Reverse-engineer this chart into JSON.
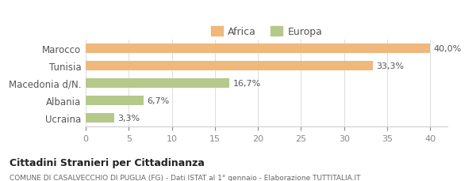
{
  "categories": [
    "Marocco",
    "Tunisia",
    "Macedonia d/N.",
    "Albania",
    "Ucraina"
  ],
  "values": [
    40.0,
    33.3,
    16.7,
    6.7,
    3.3
  ],
  "labels": [
    "40,0%",
    "33,3%",
    "16,7%",
    "6,7%",
    "3,3%"
  ],
  "bar_colors": [
    "#f0b87a",
    "#f0b87a",
    "#b5c98a",
    "#b5c98a",
    "#b5c98a"
  ],
  "legend_labels": [
    "Africa",
    "Europa"
  ],
  "legend_colors": [
    "#f0b87a",
    "#b5c98a"
  ],
  "xlim": [
    0,
    42
  ],
  "xticks": [
    0,
    5,
    10,
    15,
    20,
    25,
    30,
    35,
    40
  ],
  "title_bold": "Cittadini Stranieri per Cittadinanza",
  "subtitle": "COMUNE DI CASALVECCHIO DI PUGLIA (FG) - Dati ISTAT al 1° gennaio - Elaborazione TUTTITALIA.IT",
  "background_color": "#ffffff",
  "bar_height": 0.55
}
